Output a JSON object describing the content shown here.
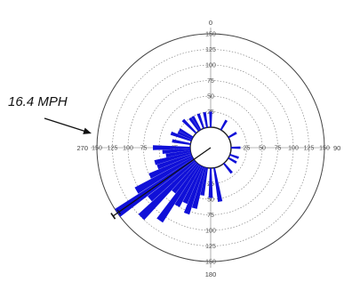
{
  "annotation": "16.4 MPH",
  "chart_data": {
    "type": "polar-bar",
    "direction_labels": [
      "0",
      "90",
      "180",
      "270"
    ],
    "radial_ticks": [
      "25",
      "50",
      "75",
      "100",
      "125",
      "150"
    ],
    "rmax": 150,
    "directions_deg": [
      170,
      180,
      190,
      195,
      200,
      205,
      210,
      215,
      220,
      225,
      230,
      235,
      240,
      245,
      250,
      255,
      260,
      265,
      270,
      280,
      290,
      295,
      300,
      315,
      325,
      330,
      340,
      350,
      360,
      30,
      60,
      90,
      110,
      120,
      140
    ],
    "values": [
      55,
      48,
      45,
      68,
      80,
      65,
      75,
      110,
      60,
      125,
      95,
      150,
      105,
      75,
      58,
      60,
      40,
      45,
      60,
      30,
      35,
      25,
      25,
      30,
      25,
      25,
      25,
      25,
      25,
      18,
      15,
      15,
      15,
      15,
      20
    ],
    "vector_direction_deg": 235,
    "vector_magnitude": 150,
    "bar_color": "#1010d8",
    "vector_color": "#111111",
    "grid": true
  }
}
